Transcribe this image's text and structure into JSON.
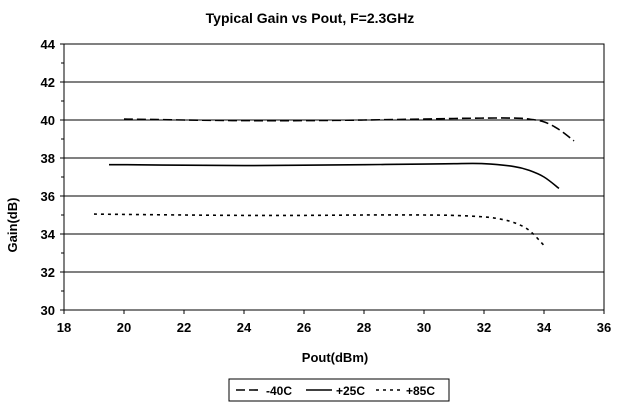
{
  "chart_data": {
    "type": "line",
    "title": "Typical Gain vs Pout, F=2.3GHz",
    "xlabel": "Pout(dBm)",
    "ylabel": "Gain(dB)",
    "xlim": [
      18,
      36
    ],
    "ylim": [
      30,
      44
    ],
    "xticks": [
      18,
      20,
      22,
      24,
      26,
      28,
      30,
      32,
      34,
      36
    ],
    "yticks": [
      30,
      32,
      34,
      36,
      38,
      40,
      42,
      44
    ],
    "grid": true,
    "legend_position": "bottom-center",
    "series": [
      {
        "name": "-40C",
        "dash": "dashed",
        "x": [
          20,
          22,
          24,
          26,
          28,
          30,
          31,
          32,
          33,
          33.5,
          34,
          34.5,
          35
        ],
        "y": [
          40.05,
          40.0,
          39.97,
          39.97,
          40.0,
          40.05,
          40.08,
          40.1,
          40.1,
          40.05,
          39.9,
          39.5,
          38.9
        ]
      },
      {
        "name": "+25C",
        "dash": "solid",
        "x": [
          19.5,
          20,
          22,
          24,
          26,
          28,
          30,
          31,
          32,
          33,
          33.5,
          34,
          34.5
        ],
        "y": [
          37.65,
          37.65,
          37.62,
          37.6,
          37.62,
          37.65,
          37.68,
          37.7,
          37.7,
          37.55,
          37.35,
          37.0,
          36.4
        ]
      },
      {
        "name": "+85C",
        "dash": "dotted",
        "x": [
          19,
          20,
          22,
          24,
          26,
          28,
          30,
          31,
          32,
          32.5,
          33,
          33.5,
          34
        ],
        "y": [
          35.05,
          35.03,
          35.0,
          34.98,
          34.98,
          35.0,
          35.0,
          34.98,
          34.9,
          34.8,
          34.6,
          34.2,
          33.4
        ]
      }
    ]
  }
}
